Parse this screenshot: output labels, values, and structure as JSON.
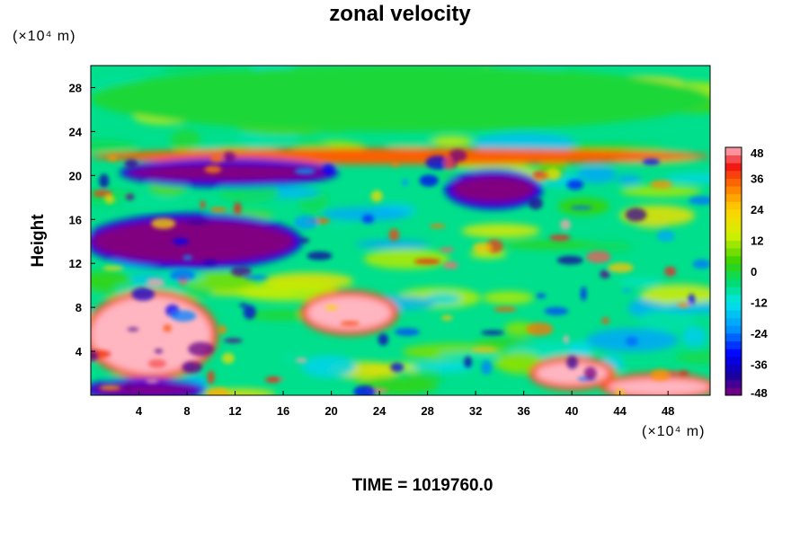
{
  "chart_data": {
    "type": "heatmap",
    "title": "zonal velocity",
    "ylabel": "Height",
    "x_unit_text": "(×10⁴ m)",
    "y_unit_text": "(×10⁴ m)",
    "xlim": [
      0,
      51.5
    ],
    "ylim": [
      0,
      30
    ],
    "x_ticks": [
      4,
      8,
      12,
      16,
      20,
      24,
      28,
      32,
      36,
      40,
      44,
      48
    ],
    "y_ticks": [
      4,
      8,
      12,
      16,
      20,
      24,
      28
    ],
    "colorbar": {
      "ticks": [
        48,
        36,
        24,
        12,
        0,
        -12,
        -24,
        -36,
        -48
      ],
      "range": [
        -48,
        48
      ],
      "levels": 32,
      "colormap": "rainbow: purple (#800080) → blue → cyan → green → yellow → orange → red → pink (#ffb6c1)"
    },
    "approx_field_summary": [
      {
        "x": [
          0,
          51.5
        ],
        "y": [
          24,
          30
        ],
        "value": 0
      },
      {
        "x": [
          0,
          51.5
        ],
        "y": [
          21,
          22.5
        ],
        "value": 35
      },
      {
        "x": [
          3,
          20
        ],
        "y": [
          19.5,
          21
        ],
        "value": -48
      },
      {
        "x": [
          30,
          37
        ],
        "y": [
          17.5,
          20
        ],
        "value": -48
      },
      {
        "x": [
          0,
          17
        ],
        "y": [
          12,
          16
        ],
        "value": -48
      },
      {
        "x": [
          0,
          10
        ],
        "y": [
          2,
          9
        ],
        "value": 48
      },
      {
        "x": [
          18,
          25
        ],
        "y": [
          6,
          9
        ],
        "value": 48
      },
      {
        "x": [
          37,
          43
        ],
        "y": [
          1,
          3
        ],
        "value": 48
      },
      {
        "x": [
          43,
          51.5
        ],
        "y": [
          0,
          1.5
        ],
        "value": 48
      },
      {
        "x": [
          0,
          9
        ],
        "y": [
          0,
          1
        ],
        "value": -48
      }
    ]
  },
  "footer": {
    "time_label": "TIME =",
    "time_value": "1019760.0"
  }
}
